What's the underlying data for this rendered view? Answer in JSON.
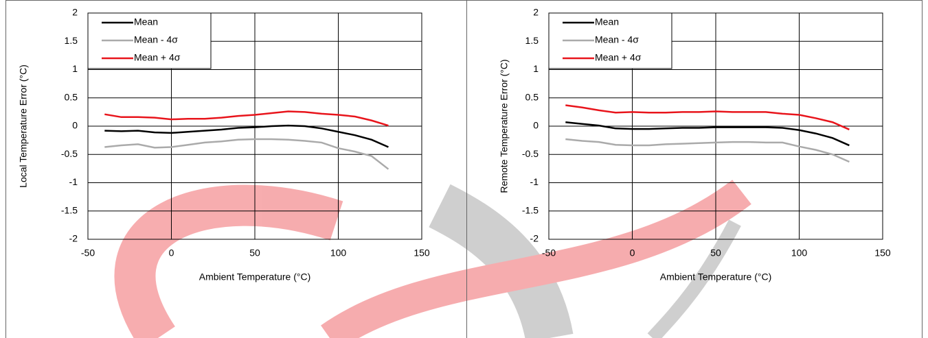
{
  "chart_data": [
    {
      "type": "line",
      "xlabel": "Ambient Temperature  (°C)",
      "ylabel": "Local Temperature Error (°C)",
      "x": [
        -40,
        -30,
        -20,
        -10,
        0,
        10,
        20,
        30,
        40,
        50,
        60,
        70,
        80,
        90,
        100,
        110,
        120,
        130
      ],
      "series": [
        {
          "name": "Mean",
          "color": "#000000",
          "values": [
            -0.08,
            -0.09,
            -0.08,
            -0.11,
            -0.12,
            -0.1,
            -0.08,
            -0.06,
            -0.03,
            -0.02,
            0,
            0.01,
            0,
            -0.04,
            -0.1,
            -0.16,
            -0.24,
            -0.37
          ]
        },
        {
          "name": "Mean - 4σ",
          "color": "#aaaaaa",
          "values": [
            -0.37,
            -0.34,
            -0.32,
            -0.38,
            -0.37,
            -0.33,
            -0.29,
            -0.27,
            -0.24,
            -0.23,
            -0.23,
            -0.24,
            -0.26,
            -0.29,
            -0.39,
            -0.45,
            -0.53,
            -0.76
          ]
        },
        {
          "name": "Mean + 4σ",
          "color": "#e8141b",
          "values": [
            0.21,
            0.16,
            0.16,
            0.15,
            0.12,
            0.13,
            0.13,
            0.15,
            0.18,
            0.2,
            0.23,
            0.26,
            0.25,
            0.22,
            0.2,
            0.17,
            0.1,
            0.01
          ]
        }
      ],
      "xlim": [
        -50,
        150
      ],
      "xticks": [
        -50,
        0,
        50,
        100,
        150
      ],
      "ylim": [
        -2,
        2
      ],
      "yticks": [
        -2,
        -1.5,
        -1,
        -0.5,
        0,
        0.5,
        1,
        1.5,
        2
      ],
      "grid": true,
      "legend": "upper left"
    },
    {
      "type": "line",
      "xlabel": "Ambient Temperature (°C)",
      "ylabel": "Remote Temperature Error (°C)",
      "x": [
        -40,
        -30,
        -20,
        -10,
        0,
        10,
        20,
        30,
        40,
        50,
        60,
        70,
        80,
        90,
        100,
        110,
        120,
        130
      ],
      "series": [
        {
          "name": "Mean",
          "color": "#000000",
          "values": [
            0.07,
            0.04,
            0.01,
            -0.04,
            -0.05,
            -0.05,
            -0.04,
            -0.03,
            -0.03,
            -0.02,
            -0.02,
            -0.02,
            -0.02,
            -0.03,
            -0.07,
            -0.13,
            -0.21,
            -0.34
          ]
        },
        {
          "name": "Mean - 4σ",
          "color": "#aaaaaa",
          "values": [
            -0.23,
            -0.26,
            -0.28,
            -0.33,
            -0.34,
            -0.34,
            -0.32,
            -0.31,
            -0.3,
            -0.29,
            -0.28,
            -0.28,
            -0.29,
            -0.29,
            -0.36,
            -0.42,
            -0.5,
            -0.63
          ]
        },
        {
          "name": "Mean + 4σ",
          "color": "#e8141b",
          "values": [
            0.37,
            0.33,
            0.28,
            0.24,
            0.25,
            0.24,
            0.24,
            0.25,
            0.25,
            0.26,
            0.25,
            0.25,
            0.25,
            0.22,
            0.2,
            0.14,
            0.07,
            -0.06
          ]
        }
      ],
      "xlim": [
        -50,
        150
      ],
      "xticks": [
        -50,
        0,
        50,
        100,
        150
      ],
      "ylim": [
        -2,
        2
      ],
      "yticks": [
        -2,
        -1.5,
        -1,
        -0.5,
        0,
        0.5,
        1,
        1.5,
        2
      ],
      "grid": true,
      "legend": "upper left"
    }
  ]
}
